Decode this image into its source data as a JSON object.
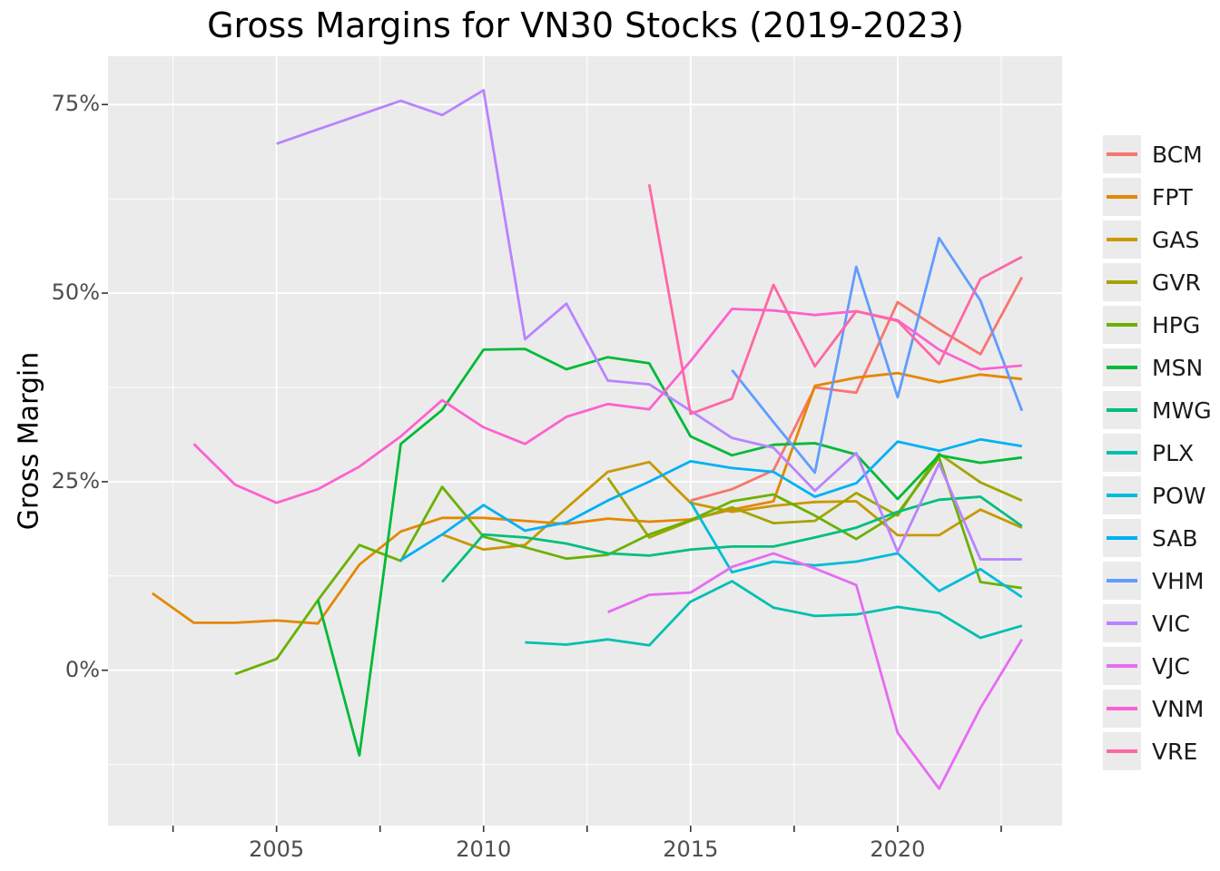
{
  "title": "Gross Margins for VN30 Stocks (2019-2023)",
  "colors": {
    "panel_bg": "#EBEBEB",
    "grid": "#FFFFFF",
    "tick_mark": "#333333",
    "tick_label": "#4D4D4D",
    "text": "#000000"
  },
  "x_axis": {
    "range": [
      2000.93,
      2023.97
    ],
    "major_breaks": [
      2005,
      2010,
      2015,
      2020
    ],
    "labels": [
      "2005",
      "2010",
      "2015",
      "2020"
    ],
    "minor_breaks": [
      2002.5,
      2007.5,
      2012.5,
      2017.5,
      2022.5
    ]
  },
  "y_axis": {
    "label": "Gross Margin",
    "range": [
      -20.6,
      81.4
    ],
    "major_breaks": [
      0,
      25,
      50,
      75
    ],
    "labels": [
      "0%",
      "25%",
      "50%",
      "75%"
    ],
    "minor_breaks": [
      -12.5,
      12.5,
      37.5,
      62.5
    ]
  },
  "legend": {
    "items": [
      {
        "label": "BCM",
        "color": "#F8766D"
      },
      {
        "label": "FPT",
        "color": "#E58700"
      },
      {
        "label": "GAS",
        "color": "#C99800"
      },
      {
        "label": "GVR",
        "color": "#A3A500"
      },
      {
        "label": "HPG",
        "color": "#6BB100"
      },
      {
        "label": "MSN",
        "color": "#00BA38"
      },
      {
        "label": "MWG",
        "color": "#00BF7D"
      },
      {
        "label": "PLX",
        "color": "#00C0AF"
      },
      {
        "label": "POW",
        "color": "#00BCD8"
      },
      {
        "label": "SAB",
        "color": "#00B0F6"
      },
      {
        "label": "VHM",
        "color": "#619CFF"
      },
      {
        "label": "VIC",
        "color": "#B983FF"
      },
      {
        "label": "VJC",
        "color": "#E76BF3"
      },
      {
        "label": "VNM",
        "color": "#FD61D1"
      },
      {
        "label": "VRE",
        "color": "#FF67A4"
      }
    ]
  },
  "chart_data": {
    "type": "line",
    "title": "Gross Margins for VN30 Stocks (2019-2023)",
    "xlabel": "",
    "ylabel": "Gross Margin",
    "x_unit": "year",
    "y_unit": "percent",
    "xlim": [
      2000.93,
      2023.97
    ],
    "ylim": [
      -20.6,
      81.4
    ],
    "grid": true,
    "legend_position": "right",
    "series": [
      {
        "name": "BCM",
        "color": "#F8766D",
        "points": [
          [
            2015,
            22.5
          ],
          [
            2016,
            24
          ],
          [
            2017,
            26.5
          ],
          [
            2018,
            37.5
          ],
          [
            2019,
            36.8
          ],
          [
            2020,
            48.8
          ],
          [
            2021,
            45.2
          ],
          [
            2022,
            41.9
          ],
          [
            2023,
            52.1
          ]
        ]
      },
      {
        "name": "FPT",
        "color": "#E58700",
        "points": [
          [
            2002,
            10.2
          ],
          [
            2003,
            6.3
          ],
          [
            2004,
            6.3
          ],
          [
            2005,
            6.6
          ],
          [
            2006,
            6.2
          ],
          [
            2007,
            14
          ],
          [
            2008,
            18.4
          ],
          [
            2009,
            20.2
          ],
          [
            2010,
            20.2
          ],
          [
            2011,
            19.8
          ],
          [
            2012,
            19.4
          ],
          [
            2013,
            20.1
          ],
          [
            2014,
            19.7
          ],
          [
            2015,
            20
          ],
          [
            2016,
            21.3
          ],
          [
            2017,
            22.4
          ],
          [
            2018,
            37.7
          ],
          [
            2019,
            38.8
          ],
          [
            2020,
            39.4
          ],
          [
            2021,
            38.2
          ],
          [
            2022,
            39.2
          ],
          [
            2023,
            38.6
          ]
        ]
      },
      {
        "name": "GAS",
        "color": "#C99800",
        "points": [
          [
            2009,
            18
          ],
          [
            2010,
            16
          ],
          [
            2011,
            16.6
          ],
          [
            2012,
            21.5
          ],
          [
            2013,
            26.3
          ],
          [
            2014,
            27.6
          ],
          [
            2015,
            22.2
          ],
          [
            2016,
            21
          ],
          [
            2017,
            21.8
          ],
          [
            2018,
            22.3
          ],
          [
            2019,
            22.4
          ],
          [
            2020,
            17.9
          ],
          [
            2021,
            17.9
          ],
          [
            2022,
            21.3
          ],
          [
            2023,
            18.9
          ]
        ]
      },
      {
        "name": "GVR",
        "color": "#A3A500",
        "points": [
          [
            2013,
            25.5
          ],
          [
            2014,
            17.6
          ],
          [
            2015,
            19.8
          ],
          [
            2016,
            21.6
          ],
          [
            2017,
            19.5
          ],
          [
            2018,
            19.8
          ],
          [
            2019,
            23.5
          ],
          [
            2020,
            20.5
          ],
          [
            2021,
            28.7
          ],
          [
            2022,
            24.9
          ],
          [
            2023,
            22.5
          ]
        ]
      },
      {
        "name": "HPG",
        "color": "#6BB100",
        "points": [
          [
            2004,
            -0.5
          ],
          [
            2005,
            1.5
          ],
          [
            2006,
            9.3
          ],
          [
            2007,
            16.6
          ],
          [
            2008,
            14.5
          ],
          [
            2009,
            24.3
          ],
          [
            2010,
            17.7
          ],
          [
            2011,
            16.3
          ],
          [
            2012,
            14.8
          ],
          [
            2013,
            15.3
          ],
          [
            2014,
            18
          ],
          [
            2015,
            19.9
          ],
          [
            2016,
            22.4
          ],
          [
            2017,
            23.3
          ],
          [
            2018,
            20.5
          ],
          [
            2019,
            17.4
          ],
          [
            2020,
            20.8
          ],
          [
            2021,
            28.2
          ],
          [
            2022,
            11.7
          ],
          [
            2023,
            10.9
          ]
        ]
      },
      {
        "name": "MSN",
        "color": "#00BA38",
        "points": [
          [
            2006,
            9.3
          ],
          [
            2007,
            -11.3
          ],
          [
            2008,
            30
          ],
          [
            2009,
            34.5
          ],
          [
            2010,
            42.5
          ],
          [
            2011,
            42.6
          ],
          [
            2012,
            39.9
          ],
          [
            2013,
            41.5
          ],
          [
            2014,
            40.7
          ],
          [
            2015,
            31
          ],
          [
            2016,
            28.5
          ],
          [
            2017,
            29.9
          ],
          [
            2018,
            30.1
          ],
          [
            2019,
            28.6
          ],
          [
            2020,
            22.7
          ],
          [
            2021,
            28.5
          ],
          [
            2022,
            27.5
          ],
          [
            2023,
            28.2
          ]
        ]
      },
      {
        "name": "MWG",
        "color": "#00BF7D",
        "points": [
          [
            2009,
            11.7
          ],
          [
            2010,
            18
          ],
          [
            2011,
            17.6
          ],
          [
            2012,
            16.8
          ],
          [
            2013,
            15.5
          ],
          [
            2014,
            15.2
          ],
          [
            2015,
            16
          ],
          [
            2016,
            16.4
          ],
          [
            2017,
            16.4
          ],
          [
            2018,
            17.6
          ],
          [
            2019,
            18.9
          ],
          [
            2020,
            21
          ],
          [
            2021,
            22.6
          ],
          [
            2022,
            23
          ],
          [
            2023,
            19.1
          ]
        ]
      },
      {
        "name": "PLX",
        "color": "#00C0AF",
        "points": [
          [
            2011,
            3.7
          ],
          [
            2012,
            3.4
          ],
          [
            2013,
            4.1
          ],
          [
            2014,
            3.3
          ],
          [
            2015,
            9.1
          ],
          [
            2016,
            11.8
          ],
          [
            2017,
            8.3
          ],
          [
            2018,
            7.2
          ],
          [
            2019,
            7.4
          ],
          [
            2020,
            8.4
          ],
          [
            2021,
            7.6
          ],
          [
            2022,
            4.3
          ],
          [
            2023,
            5.9
          ]
        ]
      },
      {
        "name": "POW",
        "color": "#00BCD8",
        "points": [
          [
            2015,
            22.3
          ],
          [
            2016,
            13
          ],
          [
            2017,
            14.4
          ],
          [
            2018,
            13.9
          ],
          [
            2019,
            14.4
          ],
          [
            2020,
            15.5
          ],
          [
            2021,
            10.5
          ],
          [
            2022,
            13.4
          ],
          [
            2023,
            9.7
          ]
        ]
      },
      {
        "name": "SAB",
        "color": "#00B0F6",
        "points": [
          [
            2008,
            14.6
          ],
          [
            2009,
            18
          ],
          [
            2010,
            21.9
          ],
          [
            2011,
            18.5
          ],
          [
            2012,
            19.6
          ],
          [
            2013,
            22.5
          ],
          [
            2014,
            25
          ],
          [
            2015,
            27.7
          ],
          [
            2016,
            26.8
          ],
          [
            2017,
            26.3
          ],
          [
            2018,
            23
          ],
          [
            2019,
            24.8
          ],
          [
            2020,
            30.3
          ],
          [
            2021,
            29.1
          ],
          [
            2022,
            30.6
          ],
          [
            2023,
            29.7
          ]
        ]
      },
      {
        "name": "VHM",
        "color": "#619CFF",
        "points": [
          [
            2016,
            39.8
          ],
          [
            2017,
            32.9
          ],
          [
            2018,
            26.2
          ],
          [
            2019,
            53.5
          ],
          [
            2020,
            36.2
          ],
          [
            2021,
            57.3
          ],
          [
            2022,
            49
          ],
          [
            2023,
            34.4
          ]
        ]
      },
      {
        "name": "VIC",
        "color": "#B983FF",
        "points": [
          [
            2005,
            69.8
          ],
          [
            2006,
            71.7
          ],
          [
            2007,
            73.6
          ],
          [
            2008,
            75.5
          ],
          [
            2009,
            73.6
          ],
          [
            2010,
            76.9
          ],
          [
            2011,
            43.9
          ],
          [
            2012,
            48.6
          ],
          [
            2013,
            38.4
          ],
          [
            2014,
            37.9
          ],
          [
            2015,
            34.4
          ],
          [
            2016,
            30.8
          ],
          [
            2017,
            29.5
          ],
          [
            2018,
            23.8
          ],
          [
            2019,
            28.8
          ],
          [
            2020,
            15.7
          ],
          [
            2021,
            27.4
          ],
          [
            2022,
            14.7
          ],
          [
            2023,
            14.7
          ]
        ]
      },
      {
        "name": "VJC",
        "color": "#E76BF3",
        "points": [
          [
            2013,
            7.7
          ],
          [
            2014,
            10
          ],
          [
            2015,
            10.3
          ],
          [
            2016,
            13.7
          ],
          [
            2017,
            15.5
          ],
          [
            2018,
            13.5
          ],
          [
            2019,
            11.3
          ],
          [
            2020,
            -8.3
          ],
          [
            2021,
            -15.7
          ],
          [
            2022,
            -5
          ],
          [
            2023,
            4.1
          ]
        ]
      },
      {
        "name": "VNM",
        "color": "#FD61D1",
        "points": [
          [
            2003,
            30
          ],
          [
            2004,
            24.6
          ],
          [
            2005,
            22.2
          ],
          [
            2006,
            24
          ],
          [
            2007,
            27
          ],
          [
            2008,
            31
          ],
          [
            2009,
            35.8
          ],
          [
            2010,
            32.2
          ],
          [
            2011,
            30
          ],
          [
            2012,
            33.6
          ],
          [
            2013,
            35.3
          ],
          [
            2014,
            34.6
          ],
          [
            2015,
            41
          ],
          [
            2016,
            47.9
          ],
          [
            2017,
            47.7
          ],
          [
            2018,
            47.1
          ],
          [
            2019,
            47.6
          ],
          [
            2020,
            46.4
          ],
          [
            2021,
            42.5
          ],
          [
            2022,
            39.9
          ],
          [
            2023,
            40.4
          ]
        ]
      },
      {
        "name": "VRE",
        "color": "#FF67A4",
        "points": [
          [
            2014,
            64.4
          ],
          [
            2015,
            34
          ],
          [
            2016,
            36
          ],
          [
            2017,
            51.1
          ],
          [
            2018,
            40.3
          ],
          [
            2019,
            47.6
          ],
          [
            2020,
            46.3
          ],
          [
            2021,
            40.6
          ],
          [
            2022,
            51.9
          ],
          [
            2023,
            54.8
          ]
        ]
      }
    ]
  }
}
